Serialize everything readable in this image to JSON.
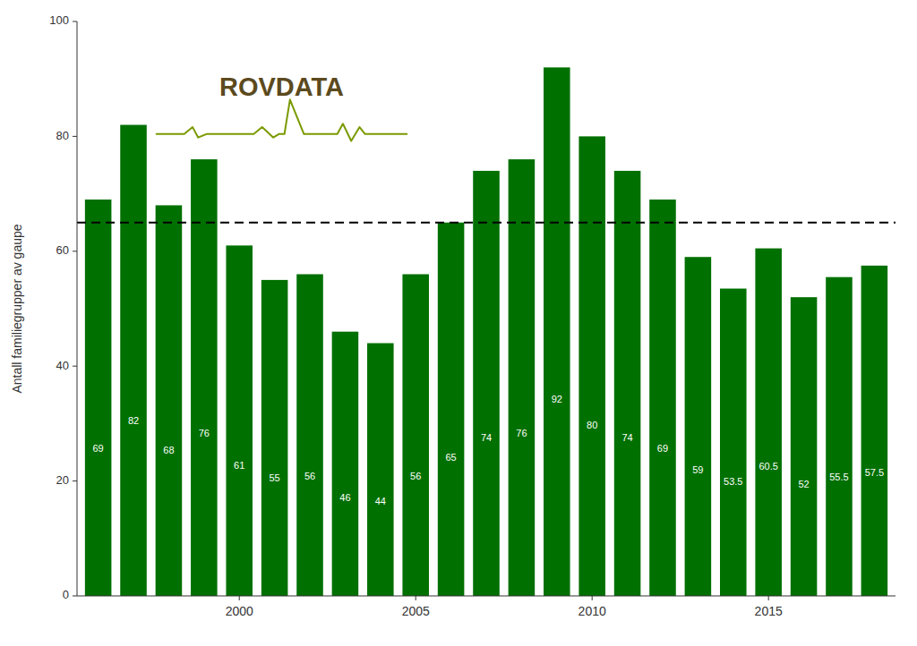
{
  "chart_data": {
    "type": "bar",
    "y_label": "Antall familiegrupper av gaupe",
    "x": [
      1996,
      1997,
      1998,
      1999,
      2000,
      2001,
      2002,
      2003,
      2004,
      2005,
      2006,
      2007,
      2008,
      2009,
      2010,
      2011,
      2012,
      2013,
      2014,
      2015,
      2016,
      2017,
      2018
    ],
    "values": [
      69,
      82,
      68,
      76,
      61,
      55,
      56,
      46,
      44,
      56,
      65,
      74,
      76,
      92,
      80,
      74,
      69,
      59,
      53.5,
      60.5,
      52,
      55.5,
      57.5
    ],
    "color": "#007000",
    "data_labels": true,
    "reference_line": 65,
    "xlim": [
      1995.4,
      2018.6
    ],
    "xticks": [
      2000,
      2005,
      2010,
      2015
    ],
    "ylim": [
      0,
      100
    ],
    "yticks": [
      0,
      20,
      40,
      60,
      80,
      100
    ],
    "grid": false,
    "annotation": "ROVDATA"
  }
}
